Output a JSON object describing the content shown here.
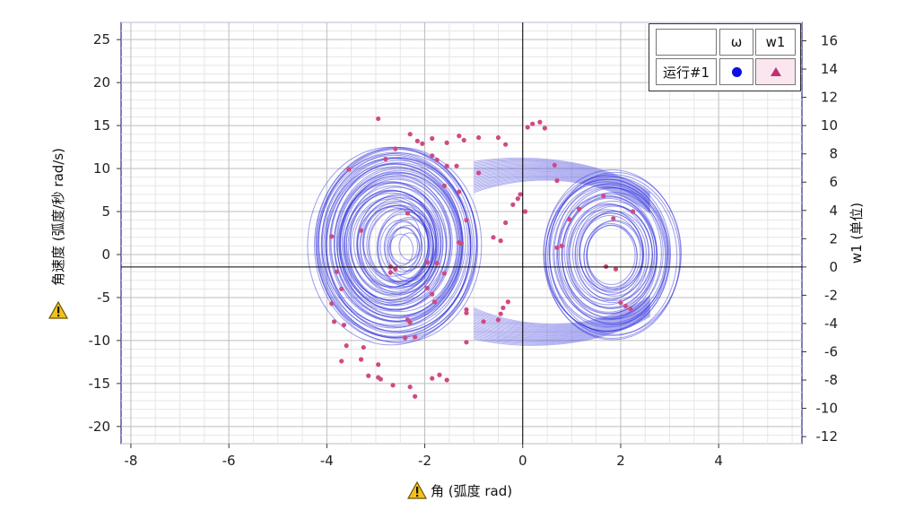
{
  "chart_data": {
    "type": "scatter",
    "x_label": "角 (弧度 rad)",
    "y_label": "角速度 (弧度/秒 rad/s)",
    "y2_label": "w1 (单位)",
    "xlim": [
      -8.2,
      5.7
    ],
    "ylim": [
      -22,
      27
    ],
    "y2lim": [
      -12.5,
      17.3
    ],
    "x_ticks": [
      -8,
      -6,
      -4,
      -2,
      0,
      2,
      4
    ],
    "y_ticks": [
      25,
      20,
      15,
      10,
      5,
      0,
      -5,
      -10,
      -15,
      -20
    ],
    "y2_ticks": [
      16,
      14,
      12,
      10,
      8,
      6,
      4,
      2,
      0,
      -2,
      -4,
      -6,
      -8,
      -10,
      -12
    ],
    "grid": true,
    "legend_position": "top-right",
    "legend": {
      "col_headers": [
        "",
        "ω",
        "w1"
      ],
      "row_label": "运行#1"
    },
    "series": [
      {
        "name": "ω",
        "style": "line",
        "color": "#2b2bdc",
        "description_of_shape": "double-scroll phase trajectory around attractors near (-2.6, 1) and (1.8, 0)"
      },
      {
        "name": "w1",
        "style": "triangle",
        "color": "#d04a82",
        "points": [
          [
            -2.95,
            15.8
          ],
          [
            -2.3,
            14.0
          ],
          [
            -2.15,
            13.2
          ],
          [
            -2.05,
            12.9
          ],
          [
            -1.85,
            13.5
          ],
          [
            -1.55,
            13.0
          ],
          [
            -1.3,
            13.8
          ],
          [
            -1.2,
            13.3
          ],
          [
            -0.9,
            13.6
          ],
          [
            -0.5,
            13.6
          ],
          [
            -0.35,
            12.8
          ],
          [
            0.1,
            14.8
          ],
          [
            0.2,
            15.2
          ],
          [
            0.35,
            15.4
          ],
          [
            0.45,
            14.7
          ],
          [
            -2.6,
            12.3
          ],
          [
            -2.8,
            11.1
          ],
          [
            -3.55,
            9.9
          ],
          [
            -1.85,
            11.5
          ],
          [
            -1.75,
            11.0
          ],
          [
            -1.55,
            10.3
          ],
          [
            -1.35,
            10.3
          ],
          [
            -0.9,
            9.5
          ],
          [
            0.65,
            10.4
          ],
          [
            0.7,
            8.6
          ],
          [
            -1.6,
            8.0
          ],
          [
            -1.3,
            7.3
          ],
          [
            -0.05,
            7.0
          ],
          [
            -0.1,
            6.5
          ],
          [
            -0.2,
            5.8
          ],
          [
            1.65,
            6.8
          ],
          [
            2.25,
            5.0
          ],
          [
            1.15,
            5.3
          ],
          [
            -2.35,
            4.8
          ],
          [
            -1.15,
            4.0
          ],
          [
            -0.35,
            3.7
          ],
          [
            0.05,
            5.0
          ],
          [
            0.95,
            4.1
          ],
          [
            1.85,
            4.2
          ],
          [
            -0.6,
            2.0
          ],
          [
            -0.45,
            1.6
          ],
          [
            -1.3,
            1.4
          ],
          [
            -1.25,
            1.3
          ],
          [
            0.8,
            1.0
          ],
          [
            0.7,
            0.8
          ],
          [
            -3.3,
            2.8
          ],
          [
            -3.9,
            2.1
          ],
          [
            -1.95,
            -0.9
          ],
          [
            -1.75,
            -1.0
          ],
          [
            -1.6,
            -2.2
          ],
          [
            -2.6,
            -1.7
          ],
          [
            -2.7,
            -1.4
          ],
          [
            -2.7,
            -2.1
          ],
          [
            1.7,
            -1.4
          ],
          [
            1.9,
            -1.7
          ],
          [
            -3.8,
            -2.0
          ],
          [
            -3.7,
            -4.0
          ],
          [
            -3.9,
            -5.7
          ],
          [
            -1.95,
            -3.9
          ],
          [
            -1.85,
            -4.6
          ],
          [
            -1.8,
            -5.5
          ],
          [
            -2.35,
            -7.6
          ],
          [
            -2.3,
            -7.9
          ],
          [
            -1.15,
            -6.4
          ],
          [
            -1.15,
            -6.8
          ],
          [
            -0.8,
            -7.8
          ],
          [
            -0.5,
            -7.6
          ],
          [
            -0.45,
            -6.9
          ],
          [
            -0.4,
            -6.2
          ],
          [
            -0.3,
            -5.5
          ],
          [
            2.0,
            -5.6
          ],
          [
            2.1,
            -6.0
          ],
          [
            2.2,
            -6.3
          ],
          [
            -3.85,
            -7.8
          ],
          [
            -3.65,
            -8.2
          ],
          [
            -2.2,
            -9.6
          ],
          [
            -2.4,
            -9.7
          ],
          [
            -1.15,
            -10.2
          ],
          [
            -3.6,
            -10.6
          ],
          [
            -3.25,
            -10.8
          ],
          [
            -3.3,
            -12.2
          ],
          [
            -3.7,
            -12.4
          ],
          [
            -2.95,
            -12.8
          ],
          [
            -3.15,
            -14.1
          ],
          [
            -2.95,
            -14.3
          ],
          [
            -2.9,
            -14.5
          ],
          [
            -2.65,
            -15.2
          ],
          [
            -1.85,
            -14.4
          ],
          [
            -1.7,
            -14.0
          ],
          [
            -1.55,
            -14.6
          ],
          [
            -2.3,
            -15.4
          ],
          [
            -2.2,
            -16.5
          ]
        ]
      }
    ]
  }
}
